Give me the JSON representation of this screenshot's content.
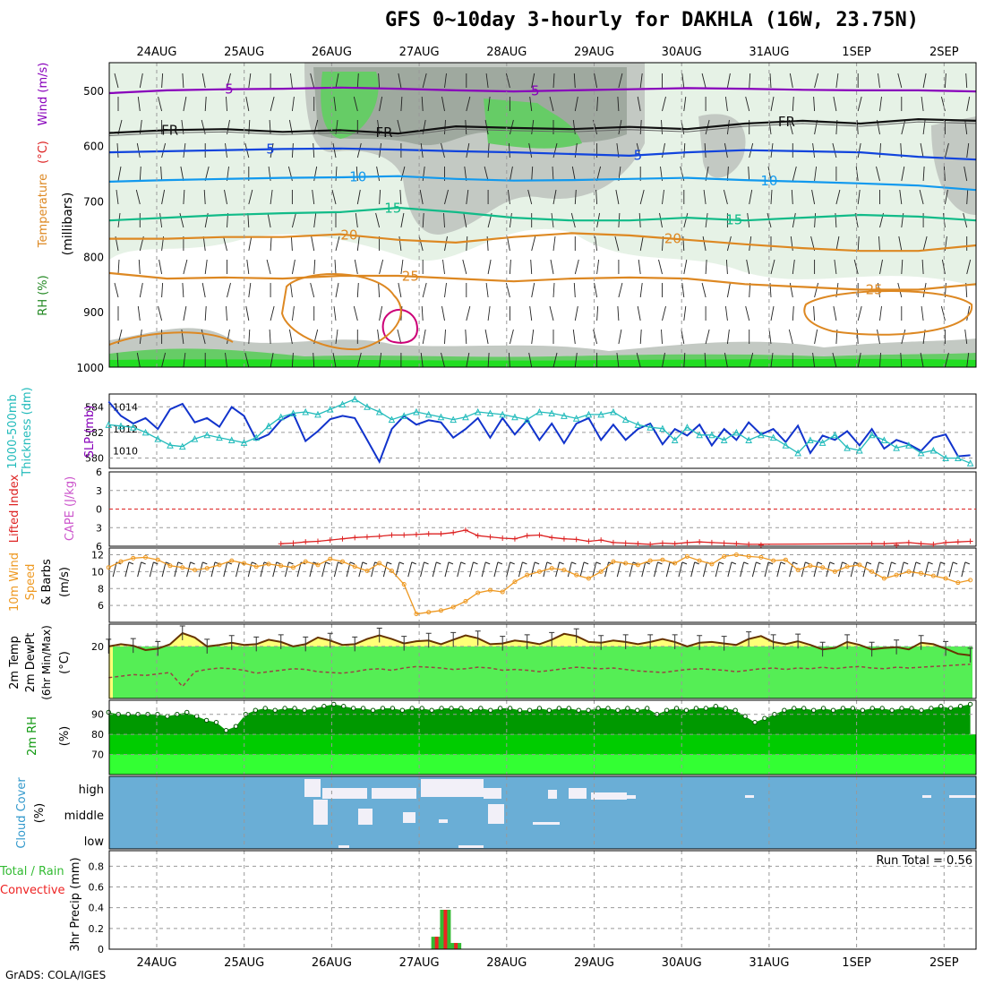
{
  "title": "GFS 0~10day 3-hourly for DAKHLA (16W, 23.75N)",
  "footer": "GrADS: COLA/IGES",
  "colors": {
    "rh_light": "#e6f2e6",
    "rh_mid": "#c3c9c3",
    "rh_dark": "#9fa99f",
    "rh_green": "#66cc66",
    "bright_green": "#22dd22",
    "temp_purple": "#8800bb",
    "temp_blue": "#1144dd",
    "temp_cyan": "#1199ee",
    "temp_teal": "#11bb88",
    "temp_orange": "#dd8822",
    "temp_magenta": "#cc0077",
    "slp_blue": "#1133cc",
    "thickness_cyan": "#22bbbb",
    "li_red": "#dd2222",
    "wind_orange": "#ee9922",
    "t2m_fill": "#55ee55",
    "t2m_warm": "#ffff77",
    "rh2m_dark": "#009900",
    "rh2m_mid": "#00cc00",
    "rh2m_light": "#33ff33",
    "cloud_blue": "#6aaed6",
    "cloud_white": "#f2f0f8",
    "precip_green": "#33bb33",
    "precip_red": "#ee2222"
  },
  "chart_data": [
    {
      "type": "contour",
      "panel": "upper-air",
      "x_tick_labels_top": [
        "24AUG",
        "25AUG",
        "26AUG",
        "27AUG",
        "28AUG",
        "29AUG",
        "30AUG",
        "31AUG",
        "1SEP",
        "2SEP"
      ],
      "y_ticks": [
        500,
        600,
        700,
        800,
        900,
        1000
      ],
      "ylabel_parts": [
        {
          "text": "RH (%)",
          "color": "#228822"
        },
        {
          "text": "Temperature",
          "color": "#dd8822"
        },
        {
          "text": "(°C)",
          "color": "#dd2222"
        },
        {
          "text": "Wind (m/s)",
          "color": "#8800bb"
        }
      ],
      "ylabel_units": "(millibars)",
      "contours": [
        {
          "label": "-5",
          "color": "#8800bb",
          "labels_at": [
            {
              "day": 0.8,
              "text": "-5"
            },
            {
              "day": 4.3,
              "text": "-5"
            }
          ],
          "p": [
            505,
            500,
            498,
            497,
            495,
            497,
            500,
            502,
            500,
            498,
            496,
            497,
            499,
            500,
            500,
            502
          ]
        },
        {
          "label": "FR",
          "color": "#111111",
          "labels_at": [
            {
              "day": 0.15,
              "text": "FR"
            },
            {
              "day": 2.6,
              "text": "FR"
            },
            {
              "day": 7.2,
              "text": "FR"
            }
          ],
          "p": [
            577,
            572,
            570,
            575,
            572,
            578,
            565,
            568,
            570,
            566,
            570,
            560,
            555,
            560,
            552,
            555
          ]
        },
        {
          "label": "5",
          "color": "#1144dd",
          "labels_at": [
            {
              "day": 1.3,
              "text": "5"
            },
            {
              "day": 5.5,
              "text": "5"
            }
          ],
          "p": [
            612,
            610,
            608,
            606,
            605,
            607,
            610,
            612,
            615,
            618,
            612,
            608,
            610,
            612,
            620,
            625
          ]
        },
        {
          "label": "10",
          "color": "#1199ee",
          "labels_at": [
            {
              "day": 2.3,
              "text": "10"
            },
            {
              "day": 7.0,
              "text": "10"
            }
          ],
          "p": [
            665,
            662,
            660,
            658,
            657,
            655,
            660,
            663,
            662,
            660,
            658,
            662,
            665,
            668,
            672,
            680
          ]
        },
        {
          "label": "15",
          "color": "#11bb88",
          "labels_at": [
            {
              "day": 2.7,
              "text": "15"
            },
            {
              "day": 6.6,
              "text": "15"
            }
          ],
          "p": [
            735,
            730,
            725,
            722,
            720,
            712,
            720,
            730,
            735,
            735,
            730,
            735,
            730,
            725,
            728,
            735
          ]
        },
        {
          "label": "20",
          "color": "#dd8822",
          "labels_at": [
            {
              "day": 2.2,
              "text": "20"
            },
            {
              "day": 5.9,
              "text": "20"
            }
          ],
          "p": [
            768,
            768,
            765,
            765,
            760,
            770,
            775,
            765,
            758,
            762,
            770,
            778,
            785,
            790,
            790,
            780
          ]
        },
        {
          "label": "25",
          "color": "#dd8822",
          "labels_at": [
            {
              "day": 2.9,
              "text": "25"
            },
            {
              "day": 8.2,
              "text": "25"
            }
          ],
          "p": [
            830,
            840,
            838,
            840,
            835,
            835,
            840,
            845,
            840,
            838,
            840,
            850,
            855,
            860,
            860,
            850
          ]
        }
      ]
    },
    {
      "type": "line",
      "panel": "slp-thickness",
      "ylabel_left": "1000-500mb",
      "ylabel_left2": "Thickness (dm)",
      "ylabel_right": "SLP (mb)",
      "y_left_ticks": [
        580,
        582,
        584
      ],
      "y_right_ticks": [
        1010,
        1012,
        1014
      ],
      "series": [
        {
          "name": "SLP (mb)",
          "color": "#1133cc",
          "values": [
            1014.5,
            1013.2,
            1012.5,
            1013.0,
            1012.0,
            1013.8,
            1014.3,
            1012.6,
            1013.0,
            1012.2,
            1014.0,
            1013.2,
            1011.0,
            1011.5,
            1012.8,
            1013.4,
            1010.9,
            1011.8,
            1012.9,
            1013.2,
            1013.0,
            1011.0,
            1009.0,
            1012.0,
            1013.2,
            1012.4,
            1012.8,
            1012.6,
            1011.2,
            1012.0,
            1013.0,
            1011.2,
            1013.0,
            1011.5,
            1012.8,
            1011.0,
            1012.5,
            1010.7,
            1012.5,
            1013.0,
            1011.0,
            1012.4,
            1011.0,
            1012.0,
            1012.5,
            1010.6,
            1012.0,
            1011.4,
            1012.4,
            1010.5,
            1012.0,
            1011.0,
            1012.6,
            1011.5,
            1012.0,
            1010.8,
            1012.3,
            1009.8,
            1011.4,
            1011.0,
            1011.8,
            1010.5,
            1012.0,
            1010.2,
            1011.0,
            1010.6,
            1010.0,
            1011.2,
            1011.5,
            1009.5,
            1009.6
          ]
        },
        {
          "name": "1000-500mb Thickness (dm)",
          "color": "#22bbbb",
          "values": [
            582.6,
            582.5,
            582.4,
            582.0,
            581.5,
            581.0,
            580.9,
            581.5,
            581.8,
            581.6,
            581.4,
            581.2,
            581.6,
            582.5,
            583.2,
            583.5,
            583.6,
            583.4,
            583.8,
            584.2,
            584.6,
            584.0,
            583.6,
            583.0,
            583.3,
            583.6,
            583.4,
            583.2,
            583.0,
            583.2,
            583.6,
            583.5,
            583.4,
            583.2,
            583.0,
            583.6,
            583.5,
            583.3,
            583.1,
            583.4,
            583.4,
            583.6,
            583.0,
            582.6,
            582.4,
            582.3,
            581.4,
            582.4,
            581.8,
            581.8,
            581.4,
            582.0,
            581.4,
            581.8,
            581.6,
            581.0,
            580.4,
            581.4,
            581.2,
            581.8,
            580.8,
            580.6,
            581.8,
            581.4,
            580.8,
            581.0,
            580.4,
            580.6,
            580.0,
            580.0,
            579.6
          ]
        }
      ]
    },
    {
      "type": "line",
      "panel": "lifted-index",
      "ylabel_left": "Lifted Index",
      "ylabel_right": "CAPE (J/kg)",
      "y_ticks": [
        -6,
        -3,
        0,
        3,
        6
      ],
      "y_tick_labels": [
        "6",
        "3",
        "0",
        "3",
        "6"
      ],
      "series": [
        {
          "name": "Lifted Index",
          "color": "#dd2222",
          "values": [
            6,
            6,
            6,
            6,
            6,
            6,
            6,
            6,
            6,
            6,
            6,
            6,
            6,
            6,
            5.6,
            5.5,
            5.3,
            5.2,
            5,
            4.8,
            4.6,
            4.5,
            4.4,
            4.2,
            4.2,
            4.1,
            4.0,
            4.0,
            3.8,
            3.4,
            4.3,
            4.5,
            4.7,
            4.8,
            4.3,
            4.2,
            4.6,
            4.8,
            4.9,
            5.2,
            5.0,
            5.4,
            5.5,
            5.6,
            5.7,
            5.5,
            5.6,
            5.4,
            5.3,
            5.4,
            5.5,
            5.6,
            5.7,
            5.8,
            5.9,
            6,
            6,
            6,
            6,
            6,
            6,
            6,
            5.6,
            5.6,
            5.8,
            5.4,
            5.6,
            5.7,
            5.4,
            5.3,
            5.2
          ]
        }
      ]
    },
    {
      "type": "line",
      "panel": "10m-wind",
      "ylabel_parts": [
        {
          "text": "10m Wind",
          "color": "#ee9922"
        },
        {
          "text": "Speed",
          "color": "#ee9922"
        },
        {
          "text": "& Barbs",
          "color": "#000000"
        },
        {
          "text": "(m/s)",
          "color": "#000000"
        }
      ],
      "y_ticks": [
        6,
        8,
        10,
        12
      ],
      "series": [
        {
          "name": "10m Wind Speed (m/s)",
          "color": "#ee9922",
          "values": [
            10.5,
            11.2,
            11.6,
            11.7,
            11.4,
            10.7,
            10.5,
            10.2,
            10.4,
            10.8,
            11.3,
            11.0,
            10.6,
            10.9,
            10.7,
            10.5,
            11.2,
            10.8,
            11.5,
            11.2,
            10.6,
            10.1,
            11.0,
            10.1,
            8.5,
            5.0,
            5.2,
            5.4,
            5.8,
            6.5,
            7.5,
            7.8,
            7.6,
            8.8,
            9.6,
            10.0,
            10.4,
            10.2,
            9.6,
            9.2,
            10.0,
            11.2,
            11.0,
            10.8,
            11.3,
            11.4,
            11.0,
            11.8,
            11.3,
            10.9,
            11.8,
            12.0,
            11.8,
            11.7,
            11.3,
            11.4,
            10.2,
            10.7,
            10.5,
            10.0,
            10.6,
            10.8,
            10.0,
            9.2,
            9.6,
            10.0,
            9.8,
            9.5,
            9.2,
            8.7,
            9.0
          ]
        }
      ]
    },
    {
      "type": "line",
      "panel": "2m-temp",
      "ylabel_parts": [
        {
          "text": "2m Temp",
          "color": "#000000"
        },
        {
          "text": "2m DewPt",
          "color": "#000000"
        },
        {
          "text": "(6hr Min/Max)",
          "color": "#000000"
        },
        {
          "text": "(°C)",
          "color": "#000000"
        }
      ],
      "y_ticks": [
        20
      ],
      "y_range": [
        13,
        23
      ],
      "series": [
        {
          "name": "2m Temp",
          "color": "#663300",
          "values": [
            20.0,
            20.3,
            20.1,
            19.5,
            19.7,
            20.3,
            21.8,
            21.2,
            20.0,
            20.2,
            20.5,
            20.2,
            20.3,
            20.9,
            20.6,
            20.0,
            20.3,
            21.2,
            20.8,
            20.2,
            20.3,
            21.0,
            21.5,
            21.0,
            20.4,
            20.7,
            20.8,
            20.3,
            20.9,
            21.5,
            21.1,
            20.3,
            20.4,
            20.8,
            20.6,
            20.3,
            20.9,
            21.7,
            21.4,
            20.6,
            20.5,
            20.8,
            20.6,
            20.3,
            20.6,
            21.0,
            20.6,
            20.0,
            20.5,
            20.6,
            20.4,
            20.2,
            21.0,
            21.4,
            20.6,
            20.3,
            20.7,
            20.2,
            19.6,
            19.8,
            20.6,
            20.2,
            19.6,
            19.8,
            19.9,
            19.6,
            20.5,
            20.3,
            19.7,
            19.0,
            18.8
          ]
        },
        {
          "name": "2m DewPt",
          "color": "#994444",
          "values": [
            15.8,
            16.0,
            16.2,
            16.1,
            16.3,
            16.5,
            14.6,
            16.6,
            16.9,
            17.1,
            17.0,
            16.8,
            16.4,
            16.6,
            16.8,
            17.0,
            16.9,
            16.6,
            16.5,
            16.4,
            16.6,
            16.9,
            17.0,
            16.8,
            17.1,
            17.3,
            17.2,
            17.1,
            16.9,
            17.0,
            17.2,
            17.1,
            16.8,
            16.9,
            16.8,
            16.6,
            16.8,
            17.0,
            17.2,
            17.1,
            17.0,
            17.1,
            16.9,
            16.7,
            16.6,
            16.5,
            16.7,
            16.9,
            17.0,
            16.9,
            16.8,
            16.6,
            16.8,
            17.0,
            17.1,
            16.9,
            17.1,
            17.0,
            17.2,
            17.0,
            17.2,
            17.3,
            17.1,
            17.0,
            17.2,
            17.1,
            17.2,
            17.3,
            17.4,
            17.5,
            17.6
          ]
        }
      ]
    },
    {
      "type": "area",
      "panel": "2m-rh",
      "ylabel": "2m RH",
      "ylabel_units": "(%)",
      "y_ticks": [
        70,
        80,
        90
      ],
      "y_range": [
        60,
        97
      ],
      "series": [
        {
          "name": "2m RH",
          "color": "#009900",
          "values": [
            91,
            90,
            90,
            90,
            90,
            90,
            89,
            90,
            91,
            89,
            87,
            86,
            82,
            84,
            90,
            92,
            93,
            92,
            93,
            93,
            92,
            93,
            94,
            95,
            94,
            93,
            93,
            92,
            93,
            93,
            92,
            93,
            93,
            92,
            93,
            93,
            93,
            92,
            93,
            92,
            93,
            93,
            92,
            92,
            93,
            92,
            93,
            93,
            92,
            92,
            93,
            93,
            92,
            93,
            92,
            93,
            90,
            92,
            93,
            92,
            93,
            93,
            94,
            93,
            92,
            89,
            86,
            88,
            90,
            92,
            93,
            93,
            92,
            93,
            92,
            93,
            93,
            92,
            93,
            93,
            92,
            93,
            93,
            92,
            93,
            94,
            93,
            94,
            95
          ]
        }
      ]
    },
    {
      "type": "heatmap",
      "panel": "cloud-cover",
      "ylabel": "Cloud Cover",
      "ylabel_units": "(%)",
      "y_tick_labels": [
        "high",
        "middle",
        "low"
      ]
    },
    {
      "type": "bar",
      "panel": "precip",
      "ylabel_parts": [
        {
          "text": "Total / Rain",
          "color": "#33bb33"
        },
        {
          "text": "Convective",
          "color": "#ee2222"
        },
        {
          "text": "3hr Precip (mm)",
          "color": "#000000"
        }
      ],
      "annotation": "Run Total = 0.56",
      "y_ticks": [
        0,
        0.2,
        0.4,
        0.6,
        0.8
      ],
      "y_range": [
        0,
        0.95
      ],
      "x_tick_labels_bottom": [
        "24AUG",
        "25AUG",
        "26AUG",
        "27AUG",
        "28AUG",
        "29AUG",
        "30AUG",
        "31AUG",
        "1SEP",
        "2SEP"
      ],
      "bars": [
        {
          "day": 3.2,
          "total": 0.12,
          "convective": 0.12
        },
        {
          "day": 3.3,
          "total": 0.38,
          "convective": 0.38
        },
        {
          "day": 3.42,
          "total": 0.06,
          "convective": 0.06
        }
      ]
    }
  ]
}
